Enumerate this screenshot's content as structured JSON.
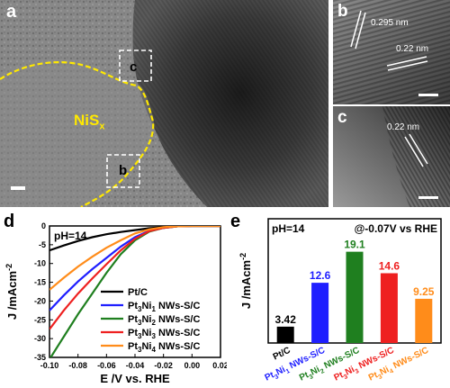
{
  "figure": {
    "panel_labels": {
      "a": "a",
      "b": "b",
      "c": "c",
      "d": "d",
      "e": "e"
    },
    "inset_labels": {
      "b": "b",
      "c": "c"
    },
    "material_label": {
      "base": "NiS",
      "sub": "x"
    },
    "lattice": {
      "b_first": "0.295 nm",
      "b_second": "0.22 nm",
      "c": "0.22 nm"
    },
    "colors": {
      "outline": "#ffe900",
      "box": "#ffffff",
      "scalebar": "#ffffff"
    }
  },
  "chart_data": [
    {
      "type": "line",
      "panel": "d",
      "annotation": "pH=14",
      "xlabel": "E /V vs. RHE",
      "ylabel_parts": {
        "main": "J /mAcm",
        "sup": "-2"
      },
      "xlim": [
        -0.1,
        0.02
      ],
      "ylim": [
        -35,
        0
      ],
      "xticks": [
        -0.1,
        -0.08,
        -0.06,
        -0.04,
        -0.02,
        0.0,
        0.02
      ],
      "xtick_labels": [
        "-0.10",
        "-0.08",
        "-0.06",
        "-0.04",
        "-0.02",
        "0.00",
        "0.02"
      ],
      "yticks": [
        0,
        -5,
        -10,
        -15,
        -20,
        -25,
        -30,
        -35
      ],
      "ytick_labels": [
        "0",
        "-5",
        "-10",
        "-15",
        "-20",
        "-25",
        "-30",
        "-35"
      ],
      "legend_position": "inside-right",
      "series": [
        {
          "name": "Pt/C",
          "legend": {
            "prefix": "Pt/C",
            "ni": "",
            "suffix": ""
          },
          "color": "#000000",
          "x": [
            -0.1,
            -0.09,
            -0.08,
            -0.07,
            -0.06,
            -0.05,
            -0.04,
            -0.03,
            -0.02,
            -0.01,
            0.0,
            0.01,
            0.02
          ],
          "y": [
            -6.5,
            -5.2,
            -4.0,
            -3.0,
            -2.2,
            -1.6,
            -1.1,
            -0.6,
            -0.3,
            -0.1,
            0.0,
            0.0,
            0.0
          ]
        },
        {
          "name": "Pt3Ni1 NWs-S/C",
          "legend": {
            "prefix": "Pt",
            "ni": "Ni",
            "suffix": " NWs-S/C",
            "s1": "3",
            "s2": "1"
          },
          "color": "#1f1fff",
          "x": [
            -0.1,
            -0.09,
            -0.08,
            -0.07,
            -0.06,
            -0.05,
            -0.04,
            -0.03,
            -0.02,
            -0.01,
            0.0,
            0.01,
            0.02
          ],
          "y": [
            -22.5,
            -18.5,
            -14.8,
            -11.5,
            -8.5,
            -5.5,
            -3.0,
            -1.3,
            -0.5,
            -0.1,
            0.0,
            0.0,
            0.0
          ]
        },
        {
          "name": "Pt3Ni2 NWs-S/C",
          "legend": {
            "prefix": "Pt",
            "ni": "Ni",
            "suffix": " NWs-S/C",
            "s1": "3",
            "s2": "2"
          },
          "color": "#1f7f1f",
          "x": [
            -0.1,
            -0.09,
            -0.08,
            -0.07,
            -0.06,
            -0.05,
            -0.04,
            -0.03,
            -0.02,
            -0.01,
            0.0,
            0.01,
            0.02
          ],
          "y": [
            -35.5,
            -29.5,
            -23.5,
            -18.0,
            -12.5,
            -7.5,
            -3.8,
            -1.5,
            -0.5,
            -0.1,
            0.0,
            0.0,
            0.0
          ]
        },
        {
          "name": "Pt3Ni3 NWs-S/C",
          "legend": {
            "prefix": "Pt",
            "ni": "Ni",
            "suffix": " NWs-S/C",
            "s1": "3",
            "s2": "3"
          },
          "color": "#ee2020",
          "x": [
            -0.1,
            -0.09,
            -0.08,
            -0.07,
            -0.06,
            -0.05,
            -0.04,
            -0.03,
            -0.02,
            -0.01,
            0.0,
            0.01,
            0.02
          ],
          "y": [
            -27.5,
            -22.5,
            -18.0,
            -14.0,
            -10.2,
            -6.5,
            -3.4,
            -1.4,
            -0.5,
            -0.1,
            0.0,
            0.0,
            0.0
          ]
        },
        {
          "name": "Pt3Ni4 NWs-S/C",
          "legend": {
            "prefix": "Pt",
            "ni": "Ni",
            "suffix": " NWs-S/C",
            "s1": "3",
            "s2": "4"
          },
          "color": "#ff8c1a",
          "x": [
            -0.1,
            -0.09,
            -0.08,
            -0.07,
            -0.06,
            -0.05,
            -0.04,
            -0.03,
            -0.02,
            -0.01,
            0.0,
            0.01,
            0.02
          ],
          "y": [
            -17.0,
            -13.8,
            -10.8,
            -8.2,
            -5.8,
            -3.8,
            -2.0,
            -0.9,
            -0.3,
            -0.1,
            0.0,
            0.0,
            0.0
          ]
        }
      ]
    },
    {
      "type": "bar",
      "panel": "e",
      "annotation_left": "pH=14",
      "annotation_right": "@-0.07V vs RHE",
      "ylabel_parts": {
        "main": "J /mAcm",
        "sup": "-2"
      },
      "ylim": [
        0,
        26
      ],
      "categories": [
        "Pt/C",
        "Pt3Ni1 NWs-S/C",
        "Pt3Ni2 NWs-S/C",
        "Pt3Ni3 NWs-S/C",
        "Pt3Ni4 NWs-S/C"
      ],
      "category_labels": [
        {
          "prefix": "Pt/C",
          "ni": "",
          "suffix": "",
          "s1": "",
          "s2": ""
        },
        {
          "prefix": "Pt",
          "ni": "Ni",
          "suffix": " NWs-S/C",
          "s1": "3",
          "s2": "1"
        },
        {
          "prefix": "Pt",
          "ni": "Ni",
          "suffix": " NWs-S/C",
          "s1": "3",
          "s2": "2"
        },
        {
          "prefix": "Pt",
          "ni": "Ni",
          "suffix": " NWs-S/C",
          "s1": "3",
          "s2": "3"
        },
        {
          "prefix": "Pt",
          "ni": "Ni",
          "suffix": " NWs-S/C",
          "s1": "3",
          "s2": "4"
        }
      ],
      "values": [
        3.42,
        12.6,
        19.1,
        14.6,
        9.25
      ],
      "value_labels": [
        "3.42",
        "12.6",
        "19.1",
        "14.6",
        "9.25"
      ],
      "colors": [
        "#000000",
        "#1f1fff",
        "#1f7f1f",
        "#ee2020",
        "#ff8c1a"
      ]
    }
  ]
}
